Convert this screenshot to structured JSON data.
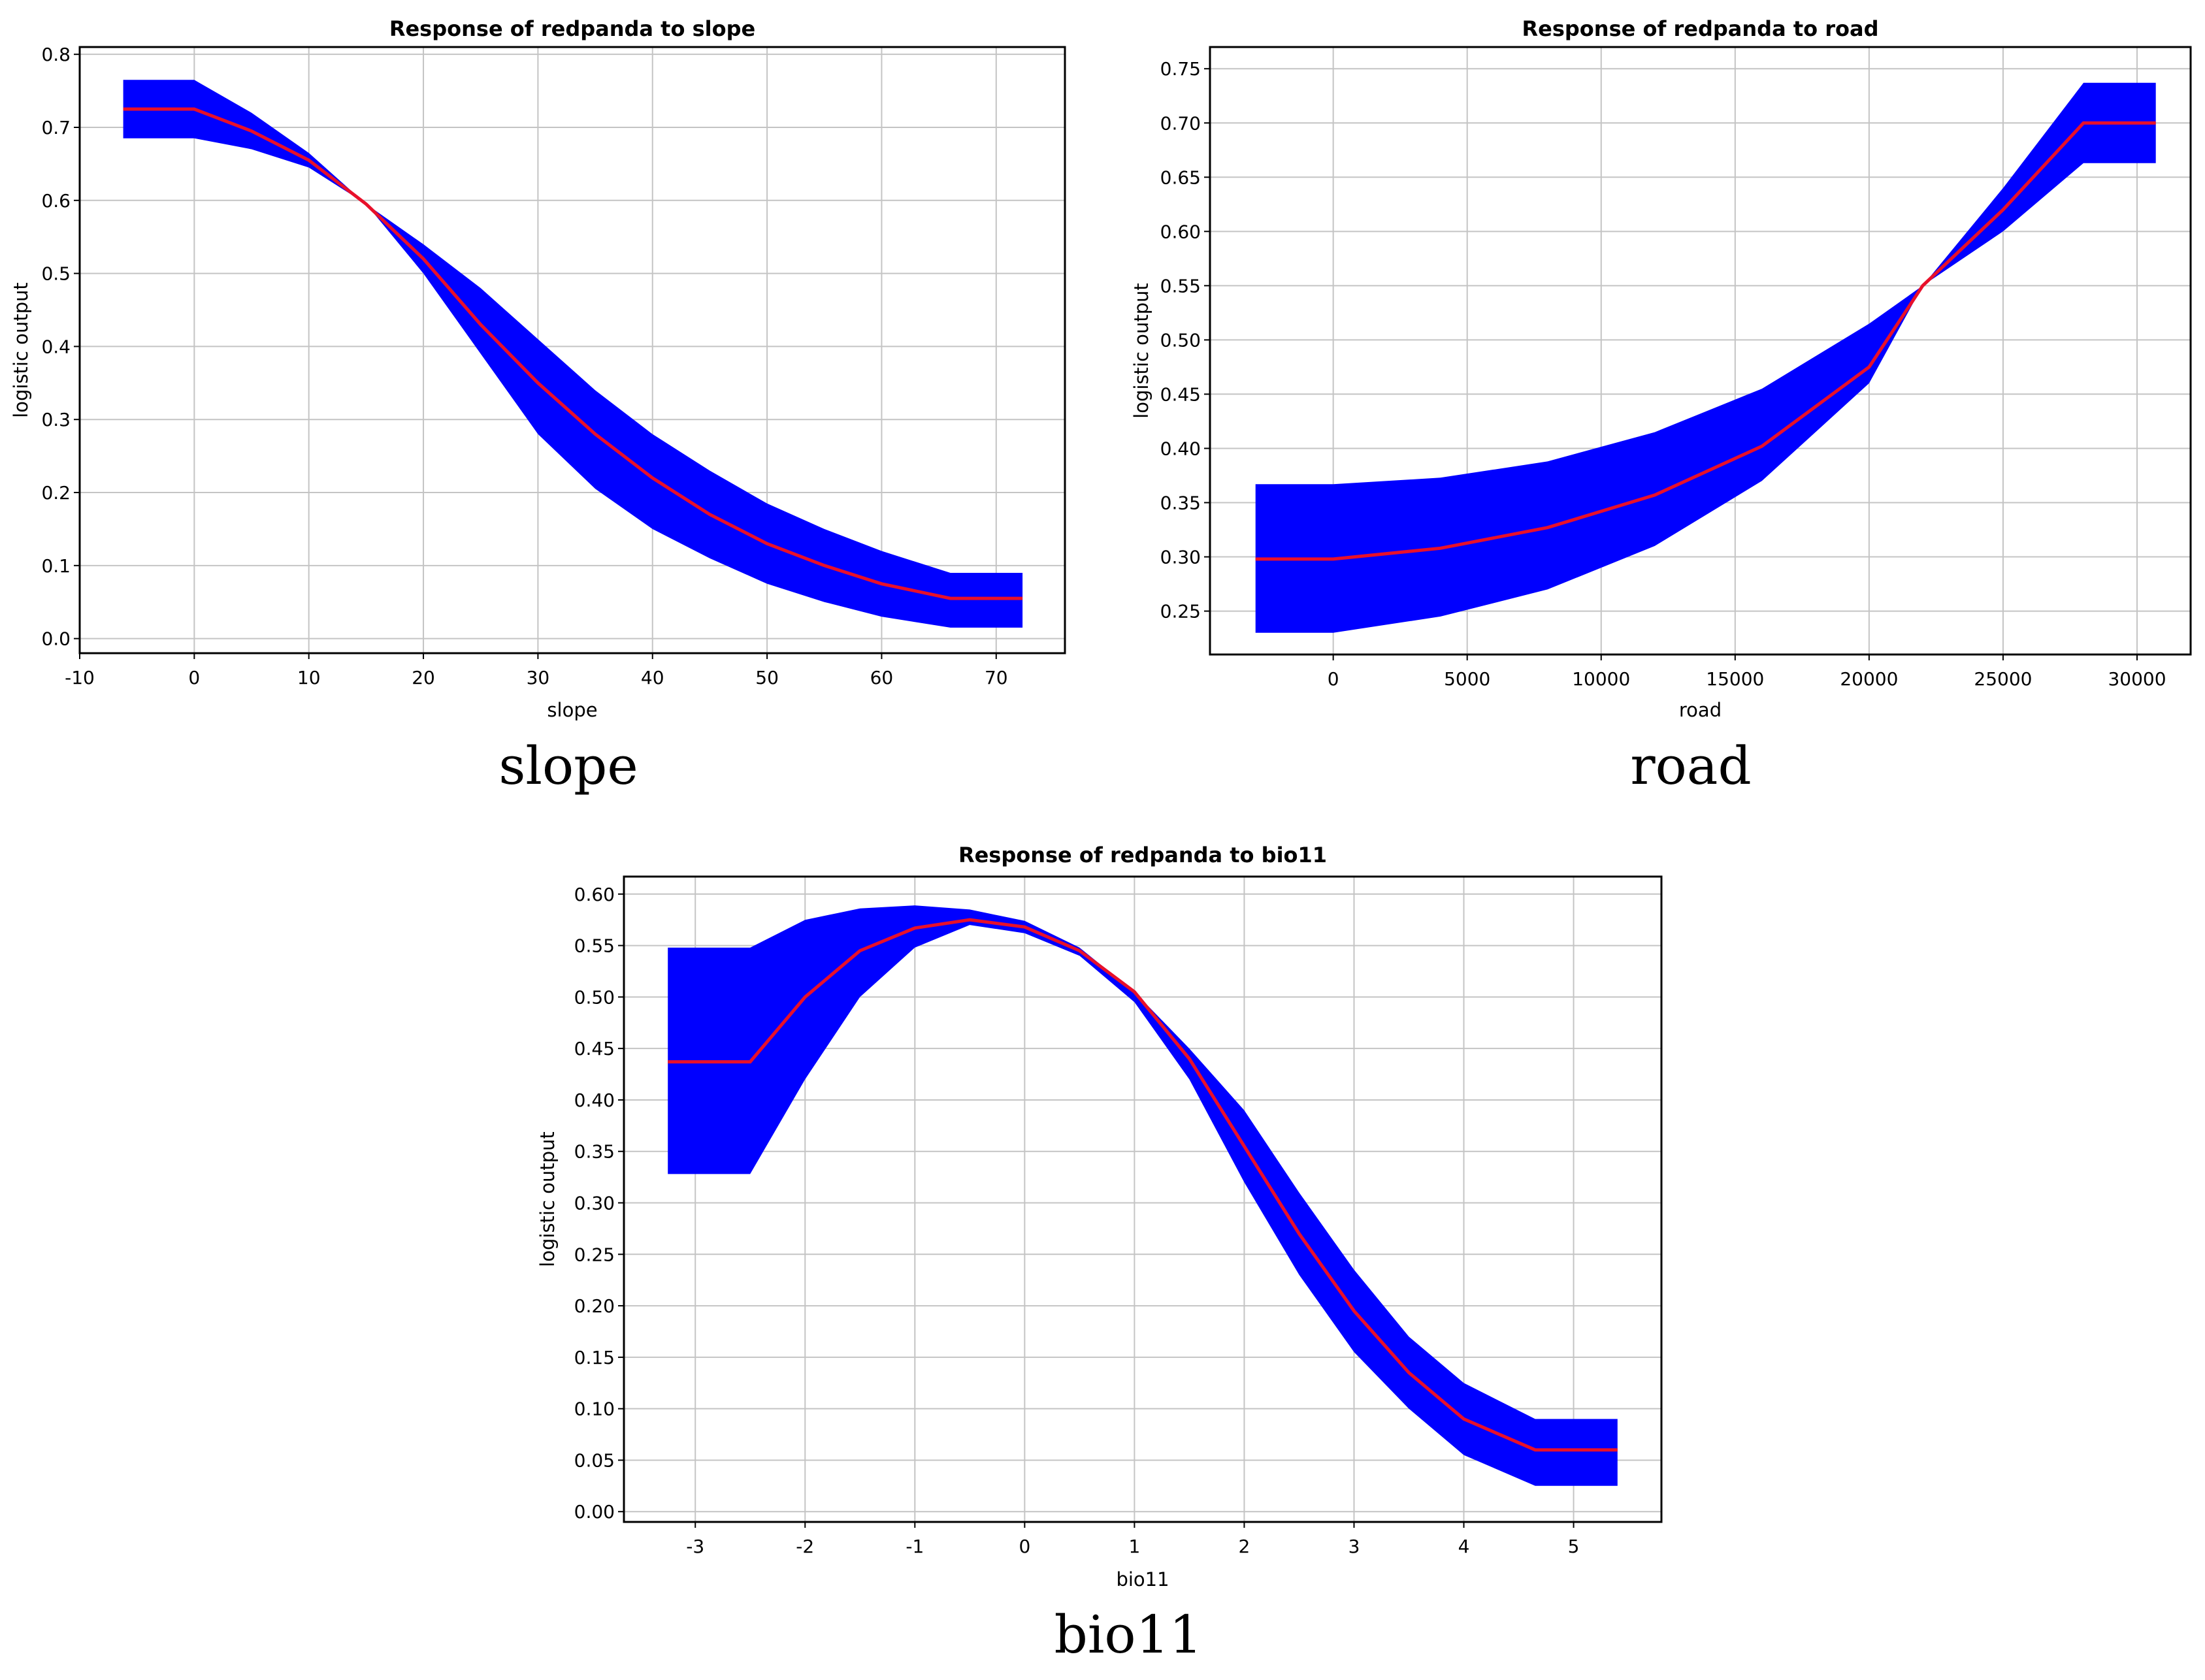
{
  "chart_data": [
    {
      "type": "line",
      "title": "Response of redpanda to slope",
      "xlabel": "slope",
      "ylabel": "logistic output",
      "caption": "slope",
      "xlim": [
        -10,
        76
      ],
      "ylim": [
        -0.02,
        0.81
      ],
      "xticks": [
        -10,
        0,
        10,
        20,
        30,
        40,
        50,
        60,
        70
      ],
      "xtick_labels": [
        "-10",
        "0",
        "10",
        "20",
        "30",
        "40",
        "50",
        "60",
        "70"
      ],
      "yticks": [
        0.0,
        0.1,
        0.2,
        0.3,
        0.4,
        0.5,
        0.6,
        0.7,
        0.8
      ],
      "ytick_labels": [
        "0.0",
        "0.1",
        "0.2",
        "0.3",
        "0.4",
        "0.5",
        "0.6",
        "0.7",
        "0.8"
      ],
      "grid": true,
      "series": [
        {
          "role": "mean",
          "color": "#e8102a",
          "x": [
            -6.2,
            0,
            5,
            10,
            15,
            20,
            25,
            30,
            35,
            40,
            45,
            50,
            55,
            60,
            66,
            72.3
          ],
          "y": [
            0.725,
            0.725,
            0.695,
            0.655,
            0.595,
            0.52,
            0.43,
            0.35,
            0.28,
            0.22,
            0.17,
            0.13,
            0.1,
            0.075,
            0.055,
            0.055
          ]
        },
        {
          "role": "upper",
          "color": "#0000ff",
          "x": [
            -6.2,
            0,
            5,
            10,
            15,
            20,
            25,
            30,
            35,
            40,
            45,
            50,
            55,
            60,
            66,
            72.3
          ],
          "y": [
            0.765,
            0.765,
            0.72,
            0.665,
            0.595,
            0.54,
            0.48,
            0.41,
            0.34,
            0.28,
            0.23,
            0.185,
            0.15,
            0.12,
            0.09,
            0.09
          ]
        },
        {
          "role": "lower",
          "color": "#0000ff",
          "x": [
            -6.2,
            0,
            5,
            10,
            15,
            20,
            25,
            30,
            35,
            40,
            45,
            50,
            55,
            60,
            66,
            72.3
          ],
          "y": [
            0.685,
            0.685,
            0.67,
            0.645,
            0.595,
            0.5,
            0.39,
            0.28,
            0.205,
            0.15,
            0.11,
            0.075,
            0.05,
            0.03,
            0.015,
            0.015
          ]
        }
      ]
    },
    {
      "type": "line",
      "title": "Response of redpanda to road",
      "xlabel": "road",
      "ylabel": "logistic output",
      "caption": "road",
      "xlim": [
        -4600,
        32000
      ],
      "ylim": [
        0.21,
        0.77
      ],
      "xticks": [
        0,
        5000,
        10000,
        15000,
        20000,
        25000,
        30000
      ],
      "xtick_labels": [
        "0",
        "5000",
        "10000",
        "15000",
        "20000",
        "25000",
        "30000"
      ],
      "yticks": [
        0.25,
        0.3,
        0.35,
        0.4,
        0.45,
        0.5,
        0.55,
        0.6,
        0.65,
        0.7,
        0.75
      ],
      "ytick_labels": [
        "0.25",
        "0.30",
        "0.35",
        "0.40",
        "0.45",
        "0.50",
        "0.55",
        "0.60",
        "0.65",
        "0.70",
        "0.75"
      ],
      "grid": true,
      "series": [
        {
          "role": "mean",
          "color": "#e8102a",
          "x": [
            -2900,
            0,
            4000,
            8000,
            12000,
            16000,
            20000,
            22000,
            25000,
            28000,
            30700
          ],
          "y": [
            0.298,
            0.298,
            0.308,
            0.327,
            0.357,
            0.402,
            0.475,
            0.55,
            0.62,
            0.7,
            0.7
          ]
        },
        {
          "role": "upper",
          "color": "#0000ff",
          "x": [
            -2900,
            0,
            4000,
            8000,
            12000,
            16000,
            20000,
            22000,
            25000,
            28000,
            30700
          ],
          "y": [
            0.367,
            0.367,
            0.373,
            0.388,
            0.415,
            0.455,
            0.515,
            0.55,
            0.64,
            0.737,
            0.737
          ]
        },
        {
          "role": "lower",
          "color": "#0000ff",
          "x": [
            -2900,
            0,
            4000,
            8000,
            12000,
            16000,
            20000,
            22000,
            25000,
            28000,
            30700
          ],
          "y": [
            0.23,
            0.23,
            0.245,
            0.27,
            0.31,
            0.37,
            0.46,
            0.55,
            0.6,
            0.663,
            0.663
          ]
        }
      ]
    },
    {
      "type": "line",
      "title": "Response of redpanda to bio11",
      "xlabel": "bio11",
      "ylabel": "logistic output",
      "caption": "bio11",
      "xlim": [
        -3.65,
        5.8
      ],
      "ylim": [
        -0.01,
        0.617
      ],
      "xticks": [
        -3,
        -2,
        -1,
        0,
        1,
        2,
        3,
        4,
        5
      ],
      "xtick_labels": [
        "-3",
        "-2",
        "-1",
        "0",
        "1",
        "2",
        "3",
        "4",
        "5"
      ],
      "yticks": [
        0.0,
        0.05,
        0.1,
        0.15,
        0.2,
        0.25,
        0.3,
        0.35,
        0.4,
        0.45,
        0.5,
        0.55,
        0.6
      ],
      "ytick_labels": [
        "0.00",
        "0.05",
        "0.10",
        "0.15",
        "0.20",
        "0.25",
        "0.30",
        "0.35",
        "0.40",
        "0.45",
        "0.50",
        "0.55",
        "0.60"
      ],
      "grid": true,
      "series": [
        {
          "role": "mean",
          "color": "#e8102a",
          "x": [
            -3.25,
            -2.5,
            -2,
            -1.5,
            -1,
            -0.5,
            0,
            0.5,
            1,
            1.5,
            2,
            2.5,
            3,
            3.5,
            4,
            4.65,
            5.4
          ],
          "y": [
            0.437,
            0.437,
            0.5,
            0.545,
            0.567,
            0.575,
            0.568,
            0.545,
            0.505,
            0.44,
            0.355,
            0.27,
            0.195,
            0.135,
            0.09,
            0.06,
            0.06
          ]
        },
        {
          "role": "upper",
          "color": "#0000ff",
          "x": [
            -3.25,
            -2.5,
            -2,
            -1.5,
            -1,
            -0.5,
            0,
            0.5,
            1,
            1.5,
            2,
            2.5,
            3,
            3.5,
            4,
            4.65,
            5.4
          ],
          "y": [
            0.548,
            0.548,
            0.575,
            0.586,
            0.589,
            0.585,
            0.574,
            0.548,
            0.505,
            0.45,
            0.39,
            0.31,
            0.235,
            0.17,
            0.125,
            0.09,
            0.09
          ]
        },
        {
          "role": "lower",
          "color": "#0000ff",
          "x": [
            -3.25,
            -2.5,
            -2,
            -1.5,
            -1,
            -0.5,
            0,
            0.5,
            1,
            1.5,
            2,
            2.5,
            3,
            3.5,
            4,
            4.65,
            5.4
          ],
          "y": [
            0.328,
            0.328,
            0.42,
            0.5,
            0.548,
            0.57,
            0.562,
            0.54,
            0.495,
            0.42,
            0.32,
            0.23,
            0.155,
            0.1,
            0.055,
            0.025,
            0.025
          ]
        }
      ]
    }
  ]
}
